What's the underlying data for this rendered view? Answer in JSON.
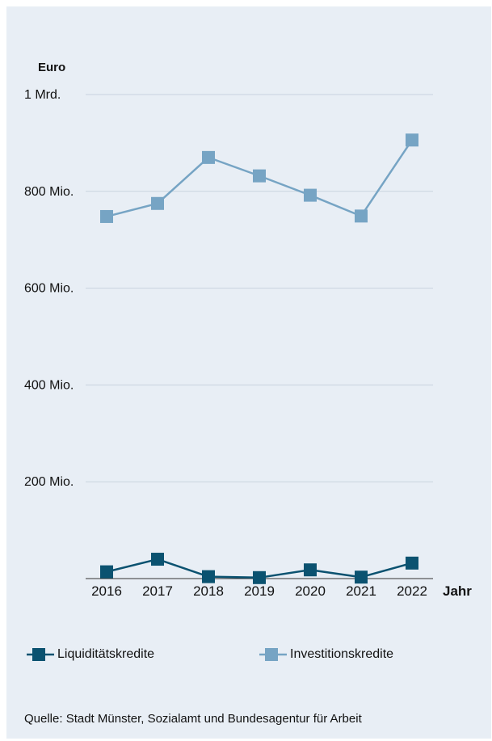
{
  "chart_data": {
    "type": "line",
    "ylabel": "Euro",
    "xlabel": "Jahr",
    "x": [
      "2016",
      "2017",
      "2018",
      "2019",
      "2020",
      "2021",
      "2022"
    ],
    "ylim": [
      0,
      1000000000
    ],
    "yticks": [
      {
        "value": 200000000,
        "label": "200 Mio."
      },
      {
        "value": 400000000,
        "label": "400 Mio."
      },
      {
        "value": 600000000,
        "label": "600 Mio."
      },
      {
        "value": 800000000,
        "label": "800 Mio."
      },
      {
        "value": 1000000000,
        "label": "1 Mrd."
      }
    ],
    "grid": true,
    "legend_position": "bottom",
    "series": [
      {
        "name": "Liquiditätskredite",
        "color": "#0b5270",
        "values": [
          14000000,
          40000000,
          4000000,
          2000000,
          18000000,
          3000000,
          32000000
        ]
      },
      {
        "name": "Investitionskredite",
        "color": "#76a4c4",
        "values": [
          748000000,
          775000000,
          870000000,
          832000000,
          792000000,
          749000000,
          906000000
        ]
      }
    ]
  },
  "source": "Quelle: Stadt Münster, Sozialamt und Bundesagentur für Arbeit"
}
